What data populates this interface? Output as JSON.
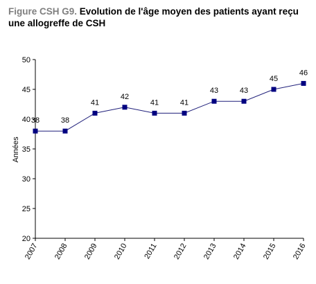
{
  "figure": {
    "prefix": "Figure CSH G9.",
    "title": "Evolution de l'âge moyen des patients ayant reçu une allogreffe de CSH"
  },
  "chart_data": {
    "type": "line",
    "title": "Evolution de l'âge moyen des patients ayant reçu une allogreffe de CSH",
    "xlabel": "",
    "ylabel": "Années",
    "categories": [
      "2007",
      "2008",
      "2009",
      "2010",
      "2011",
      "2012",
      "2013",
      "2014",
      "2015",
      "2016"
    ],
    "series": [
      {
        "values": [
          38,
          38,
          41,
          42,
          41,
          41,
          43,
          43,
          45,
          46
        ]
      }
    ],
    "ylim": [
      20,
      50
    ],
    "yticks": [
      20,
      25,
      30,
      35,
      40,
      45,
      50
    ],
    "grid": false,
    "legend": "none",
    "line_color": "#1f1f7a",
    "marker_color": "#000080"
  }
}
